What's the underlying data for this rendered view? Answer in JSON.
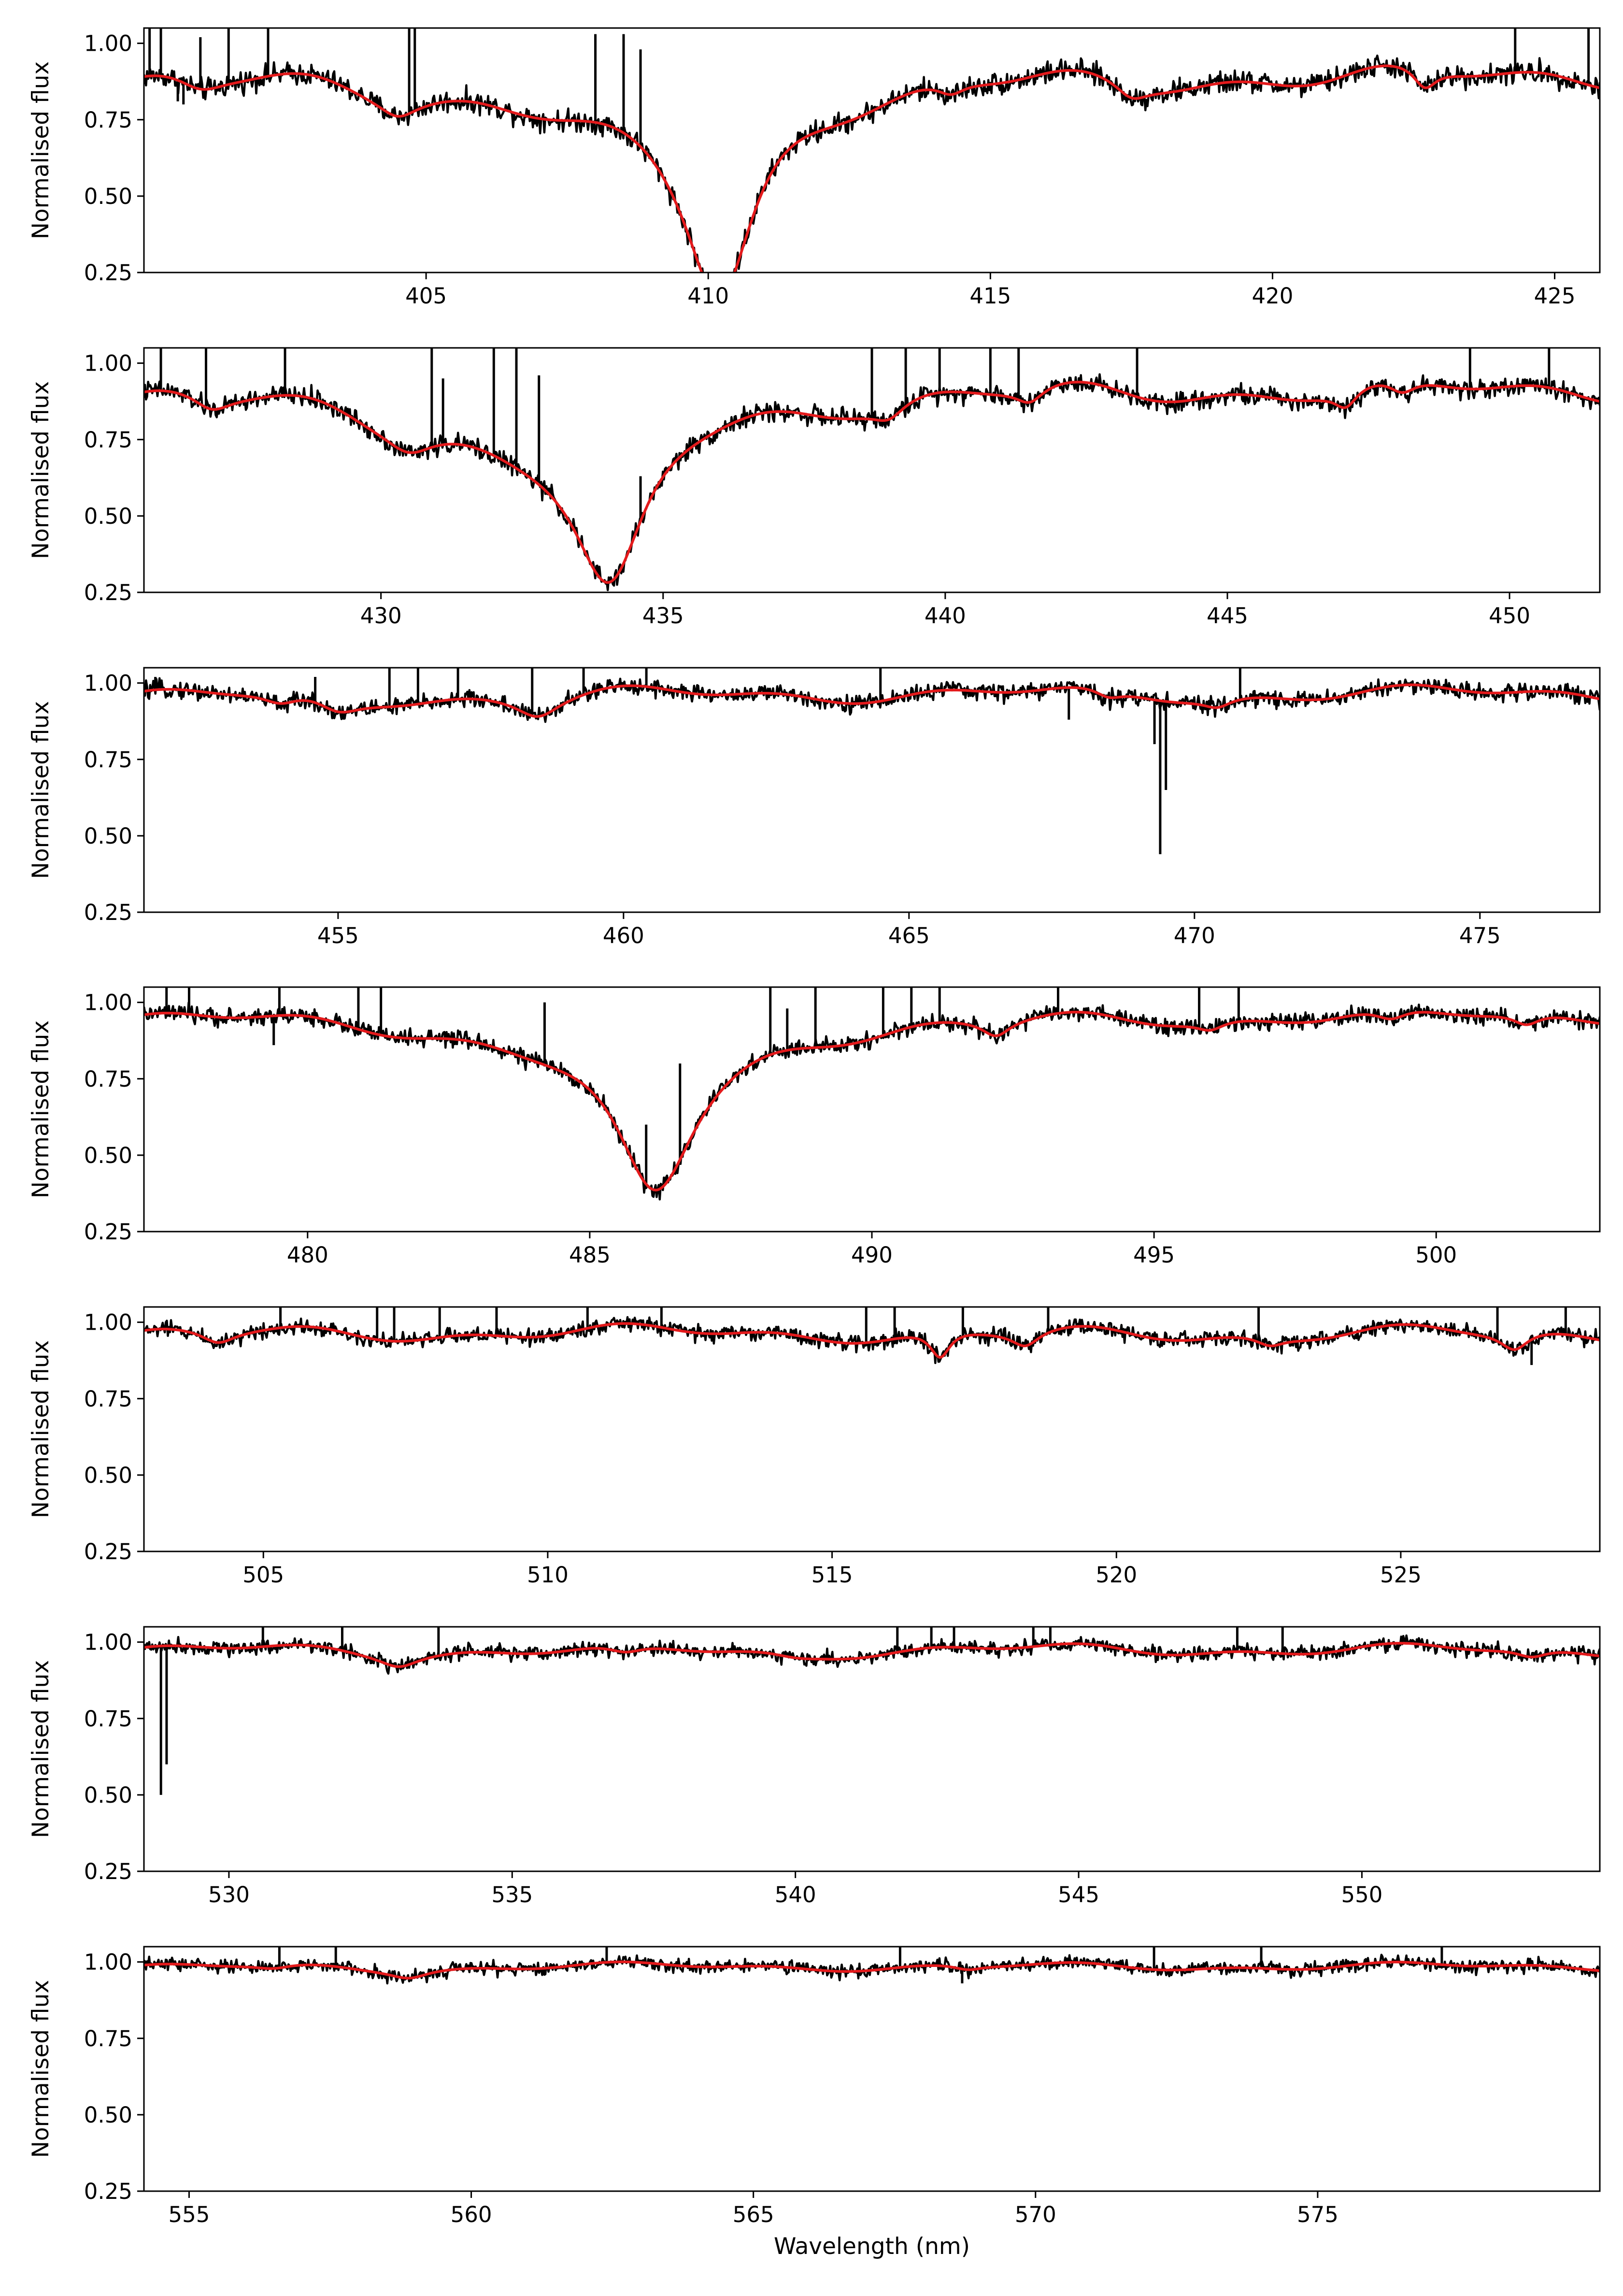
{
  "colors": {
    "observed": "#000000",
    "model": "#e41a1c",
    "axes": "#000000",
    "background": "#ffffff"
  },
  "chart_data": [
    {
      "type": "line",
      "title": "",
      "xlabel": "",
      "ylabel": "Normalised flux",
      "xlim": [
        400.0,
        425.8
      ],
      "ylim": [
        0.25,
        1.05
      ],
      "xticks": [
        405,
        410,
        415,
        420,
        425
      ],
      "yticks": [
        0.25,
        0.5,
        0.75,
        1.0
      ],
      "grid": false,
      "series": [],
      "absorption_lines": [
        {
          "center": 410.2,
          "depth": 0.62,
          "width": 0.75
        },
        {
          "center": 408.8,
          "depth": 0.14,
          "width": 2.6
        },
        {
          "center": 401.0,
          "depth": 0.05,
          "width": 0.5
        },
        {
          "center": 404.5,
          "depth": 0.05,
          "width": 0.4
        },
        {
          "center": 422.7,
          "depth": 0.07,
          "width": 0.25
        },
        {
          "center": 417.5,
          "depth": 0.05,
          "width": 0.35
        },
        {
          "center": 414.3,
          "depth": 0.04,
          "width": 0.3
        }
      ],
      "continuum": {
        "base": 0.9,
        "amp": 0.03
      },
      "noise": 0.018,
      "spikes": [
        {
          "x": 400.1,
          "y": 1.05
        },
        {
          "x": 400.3,
          "y": 1.05
        },
        {
          "x": 400.6,
          "y": 0.81
        },
        {
          "x": 400.7,
          "y": 0.8
        },
        {
          "x": 401.0,
          "y": 1.02
        },
        {
          "x": 401.5,
          "y": 1.05
        },
        {
          "x": 402.2,
          "y": 1.05
        },
        {
          "x": 404.7,
          "y": 1.05
        },
        {
          "x": 404.8,
          "y": 1.05
        },
        {
          "x": 408.0,
          "y": 1.03
        },
        {
          "x": 408.5,
          "y": 1.03
        },
        {
          "x": 408.8,
          "y": 0.98
        },
        {
          "x": 424.3,
          "y": 1.05
        },
        {
          "x": 425.6,
          "y": 1.05
        }
      ]
    },
    {
      "type": "line",
      "title": "",
      "xlabel": "",
      "ylabel": "Normalised flux",
      "xlim": [
        425.8,
        451.6
      ],
      "ylim": [
        0.25,
        1.05
      ],
      "xticks": [
        430,
        435,
        440,
        445,
        450
      ],
      "yticks": [
        0.25,
        0.5,
        0.75,
        1.0
      ],
      "grid": false,
      "series": [],
      "absorption_lines": [
        {
          "center": 434.05,
          "depth": 0.58,
          "width": 0.8
        },
        {
          "center": 432.5,
          "depth": 0.13,
          "width": 2.8
        },
        {
          "center": 447.1,
          "depth": 0.06,
          "width": 0.25
        },
        {
          "center": 448.1,
          "depth": 0.05,
          "width": 0.3
        },
        {
          "center": 430.5,
          "depth": 0.06,
          "width": 0.5
        },
        {
          "center": 427.0,
          "depth": 0.05,
          "width": 0.4
        },
        {
          "center": 441.5,
          "depth": 0.05,
          "width": 0.3
        },
        {
          "center": 439.0,
          "depth": 0.05,
          "width": 0.35
        }
      ],
      "continuum": {
        "base": 0.92,
        "amp": 0.03
      },
      "noise": 0.016,
      "spikes": [
        {
          "x": 426.1,
          "y": 1.05
        },
        {
          "x": 426.9,
          "y": 1.05
        },
        {
          "x": 428.3,
          "y": 1.05
        },
        {
          "x": 430.9,
          "y": 1.05
        },
        {
          "x": 431.1,
          "y": 0.95
        },
        {
          "x": 432.0,
          "y": 1.05
        },
        {
          "x": 432.4,
          "y": 1.05
        },
        {
          "x": 432.8,
          "y": 0.96
        },
        {
          "x": 434.6,
          "y": 0.63
        },
        {
          "x": 438.7,
          "y": 1.05
        },
        {
          "x": 439.3,
          "y": 1.05
        },
        {
          "x": 439.9,
          "y": 1.05
        },
        {
          "x": 440.8,
          "y": 1.05
        },
        {
          "x": 441.3,
          "y": 1.05
        },
        {
          "x": 443.4,
          "y": 1.05
        },
        {
          "x": 449.3,
          "y": 1.05
        },
        {
          "x": 450.7,
          "y": 1.05
        }
      ]
    },
    {
      "type": "line",
      "title": "",
      "xlabel": "",
      "ylabel": "Normalised flux",
      "xlim": [
        451.6,
        477.1
      ],
      "ylim": [
        0.25,
        1.05
      ],
      "xticks": [
        455,
        460,
        465,
        470,
        475
      ],
      "yticks": [
        0.25,
        0.5,
        0.75,
        1.0
      ],
      "grid": false,
      "series": [],
      "absorption_lines": [
        {
          "center": 455.0,
          "depth": 0.06,
          "width": 0.5
        },
        {
          "center": 458.5,
          "depth": 0.06,
          "width": 0.45
        },
        {
          "center": 454.0,
          "depth": 0.04,
          "width": 0.4
        },
        {
          "center": 468.5,
          "depth": 0.03,
          "width": 0.3
        },
        {
          "center": 470.4,
          "depth": 0.03,
          "width": 0.3
        }
      ],
      "continuum": {
        "base": 0.965,
        "amp": 0.02
      },
      "noise": 0.014,
      "spikes": [
        {
          "x": 451.8,
          "y": 1.02
        },
        {
          "x": 454.6,
          "y": 1.02
        },
        {
          "x": 455.9,
          "y": 1.05
        },
        {
          "x": 456.4,
          "y": 1.05
        },
        {
          "x": 457.1,
          "y": 1.05
        },
        {
          "x": 458.4,
          "y": 1.05
        },
        {
          "x": 459.3,
          "y": 1.05
        },
        {
          "x": 460.4,
          "y": 1.05
        },
        {
          "x": 464.5,
          "y": 1.05
        },
        {
          "x": 467.8,
          "y": 0.88
        },
        {
          "x": 469.3,
          "y": 0.8
        },
        {
          "x": 469.4,
          "y": 0.44
        },
        {
          "x": 469.5,
          "y": 0.65
        },
        {
          "x": 470.8,
          "y": 1.05
        }
      ]
    },
    {
      "type": "line",
      "title": "",
      "xlabel": "",
      "ylabel": "Normalised flux",
      "xlim": [
        477.1,
        502.9
      ],
      "ylim": [
        0.25,
        1.05
      ],
      "xticks": [
        480,
        485,
        490,
        495,
        500
      ],
      "yticks": [
        0.25,
        0.5,
        0.75,
        1.0
      ],
      "grid": false,
      "series": [],
      "absorption_lines": [
        {
          "center": 486.15,
          "depth": 0.5,
          "width": 0.85
        },
        {
          "center": 485.8,
          "depth": 0.1,
          "width": 3.2
        },
        {
          "center": 492.2,
          "depth": 0.05,
          "width": 0.3
        },
        {
          "center": 501.6,
          "depth": 0.04,
          "width": 0.3
        },
        {
          "center": 499.2,
          "depth": 0.04,
          "width": 0.35
        },
        {
          "center": 496.0,
          "depth": 0.03,
          "width": 0.3
        }
      ],
      "continuum": {
        "base": 0.965,
        "amp": 0.02
      },
      "noise": 0.014,
      "spikes": [
        {
          "x": 477.5,
          "y": 1.05
        },
        {
          "x": 477.9,
          "y": 1.05
        },
        {
          "x": 479.4,
          "y": 0.86
        },
        {
          "x": 479.5,
          "y": 1.05
        },
        {
          "x": 480.9,
          "y": 1.05
        },
        {
          "x": 481.3,
          "y": 1.05
        },
        {
          "x": 484.2,
          "y": 1.0
        },
        {
          "x": 486.0,
          "y": 0.6
        },
        {
          "x": 486.6,
          "y": 0.8
        },
        {
          "x": 488.2,
          "y": 1.05
        },
        {
          "x": 488.5,
          "y": 0.98
        },
        {
          "x": 489.0,
          "y": 1.05
        },
        {
          "x": 490.2,
          "y": 1.05
        },
        {
          "x": 490.7,
          "y": 1.05
        },
        {
          "x": 491.2,
          "y": 1.05
        },
        {
          "x": 493.3,
          "y": 1.05
        },
        {
          "x": 495.8,
          "y": 1.05
        },
        {
          "x": 496.5,
          "y": 1.05
        }
      ]
    },
    {
      "type": "line",
      "title": "",
      "xlabel": "",
      "ylabel": "Normalised flux",
      "xlim": [
        502.9,
        528.5
      ],
      "ylim": [
        0.25,
        1.05
      ],
      "xticks": [
        505,
        510,
        515,
        520,
        525
      ],
      "yticks": [
        0.25,
        0.5,
        0.75,
        1.0
      ],
      "grid": false,
      "series": [],
      "absorption_lines": [
        {
          "center": 516.9,
          "depth": 0.09,
          "width": 0.22
        },
        {
          "center": 518.4,
          "depth": 0.05,
          "width": 0.3
        },
        {
          "center": 527.0,
          "depth": 0.06,
          "width": 0.3
        },
        {
          "center": 504.2,
          "depth": 0.04,
          "width": 0.35
        },
        {
          "center": 522.7,
          "depth": 0.03,
          "width": 0.3
        }
      ],
      "continuum": {
        "base": 0.965,
        "amp": 0.02
      },
      "noise": 0.013,
      "spikes": [
        {
          "x": 505.3,
          "y": 1.05
        },
        {
          "x": 507.0,
          "y": 1.05
        },
        {
          "x": 507.3,
          "y": 1.05
        },
        {
          "x": 508.1,
          "y": 1.05
        },
        {
          "x": 509.1,
          "y": 1.05
        },
        {
          "x": 510.7,
          "y": 1.05
        },
        {
          "x": 512.0,
          "y": 1.05
        },
        {
          "x": 515.6,
          "y": 1.05
        },
        {
          "x": 516.1,
          "y": 1.05
        },
        {
          "x": 517.3,
          "y": 1.05
        },
        {
          "x": 518.8,
          "y": 1.05
        },
        {
          "x": 522.5,
          "y": 1.05
        },
        {
          "x": 526.7,
          "y": 1.05
        },
        {
          "x": 527.3,
          "y": 0.86
        },
        {
          "x": 527.9,
          "y": 1.05
        }
      ]
    },
    {
      "type": "line",
      "title": "",
      "xlabel": "",
      "ylabel": "Normalised flux",
      "xlim": [
        528.5,
        554.2
      ],
      "ylim": [
        0.25,
        1.05
      ],
      "xticks": [
        530,
        535,
        540,
        545,
        550
      ],
      "yticks": [
        0.25,
        0.5,
        0.75,
        1.0
      ],
      "grid": false,
      "series": [],
      "absorption_lines": [
        {
          "center": 533.0,
          "depth": 0.035,
          "width": 0.4
        },
        {
          "center": 537.0,
          "depth": 0.03,
          "width": 0.4
        },
        {
          "center": 540.0,
          "depth": 0.02,
          "width": 0.6
        },
        {
          "center": 553.0,
          "depth": 0.03,
          "width": 0.35
        }
      ],
      "continuum": {
        "base": 0.975,
        "amp": 0.015
      },
      "noise": 0.012,
      "spikes": [
        {
          "x": 528.8,
          "y": 0.5
        },
        {
          "x": 528.9,
          "y": 0.6
        },
        {
          "x": 530.6,
          "y": 1.05
        },
        {
          "x": 532.0,
          "y": 1.05
        },
        {
          "x": 533.7,
          "y": 1.05
        },
        {
          "x": 541.8,
          "y": 1.05
        },
        {
          "x": 542.4,
          "y": 1.05
        },
        {
          "x": 542.8,
          "y": 1.05
        },
        {
          "x": 544.2,
          "y": 1.05
        },
        {
          "x": 544.5,
          "y": 1.05
        },
        {
          "x": 547.8,
          "y": 1.05
        },
        {
          "x": 548.6,
          "y": 1.05
        }
      ]
    },
    {
      "type": "line",
      "title": "",
      "xlabel": "Wavelength (nm)",
      "ylabel": "Normalised flux",
      "xlim": [
        554.2,
        580.0
      ],
      "ylim": [
        0.25,
        1.05
      ],
      "xticks": [
        555,
        560,
        565,
        570,
        575
      ],
      "yticks": [
        0.25,
        0.5,
        0.75,
        1.0
      ],
      "grid": false,
      "series": [],
      "absorption_lines": [
        {
          "center": 558.9,
          "depth": 0.025,
          "width": 0.4
        },
        {
          "center": 556.5,
          "depth": 0.015,
          "width": 0.4
        },
        {
          "center": 568.8,
          "depth": 0.015,
          "width": 0.3
        }
      ],
      "continuum": {
        "base": 0.985,
        "amp": 0.01
      },
      "noise": 0.011,
      "spikes": [
        {
          "x": 556.6,
          "y": 1.05
        },
        {
          "x": 557.6,
          "y": 1.05
        },
        {
          "x": 562.4,
          "y": 1.05
        },
        {
          "x": 567.6,
          "y": 1.05
        },
        {
          "x": 568.7,
          "y": 0.93
        },
        {
          "x": 572.1,
          "y": 1.05
        },
        {
          "x": 574.0,
          "y": 1.05
        },
        {
          "x": 577.2,
          "y": 1.05
        }
      ]
    }
  ]
}
